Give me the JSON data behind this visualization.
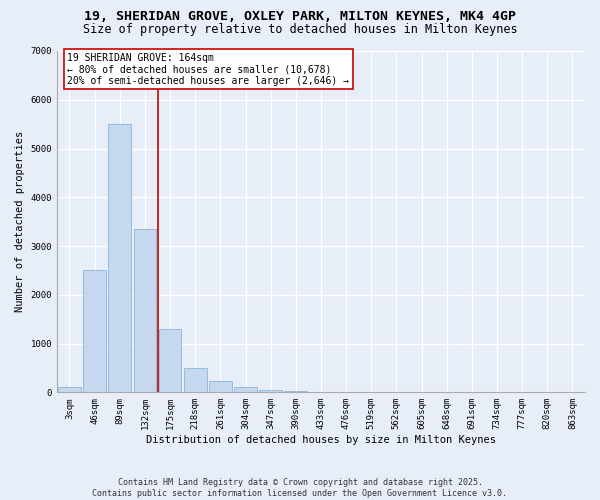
{
  "title1": "19, SHERIDAN GROVE, OXLEY PARK, MILTON KEYNES, MK4 4GP",
  "title2": "Size of property relative to detached houses in Milton Keynes",
  "xlabel": "Distribution of detached houses by size in Milton Keynes",
  "ylabel": "Number of detached properties",
  "categories": [
    "3sqm",
    "46sqm",
    "89sqm",
    "132sqm",
    "175sqm",
    "218sqm",
    "261sqm",
    "304sqm",
    "347sqm",
    "390sqm",
    "433sqm",
    "476sqm",
    "519sqm",
    "562sqm",
    "605sqm",
    "648sqm",
    "691sqm",
    "734sqm",
    "777sqm",
    "820sqm",
    "863sqm"
  ],
  "values": [
    100,
    2500,
    5500,
    3350,
    1300,
    500,
    230,
    100,
    55,
    30,
    10,
    5,
    5,
    2,
    1,
    0,
    0,
    0,
    0,
    0,
    0
  ],
  "bar_color": "#c5d8ef",
  "bar_edge_color": "#7aadd4",
  "bg_color": "#e8eef8",
  "grid_color": "#ffffff",
  "vline_x": 3.5,
  "vline_color": "#cc0000",
  "annotation_line1": "19 SHERIDAN GROVE: 164sqm",
  "annotation_line2": "← 80% of detached houses are smaller (10,678)",
  "annotation_line3": "20% of semi-detached houses are larger (2,646) →",
  "annotation_box_color": "#ffffff",
  "annotation_box_edge": "#cc0000",
  "ylim": [
    0,
    7000
  ],
  "yticks": [
    0,
    1000,
    2000,
    3000,
    4000,
    5000,
    6000,
    7000
  ],
  "footnote": "Contains HM Land Registry data © Crown copyright and database right 2025.\nContains public sector information licensed under the Open Government Licence v3.0.",
  "title_fontsize": 9.5,
  "subtitle_fontsize": 8.5,
  "axis_label_fontsize": 7.5,
  "tick_fontsize": 6.5,
  "annotation_fontsize": 7,
  "footnote_fontsize": 6
}
